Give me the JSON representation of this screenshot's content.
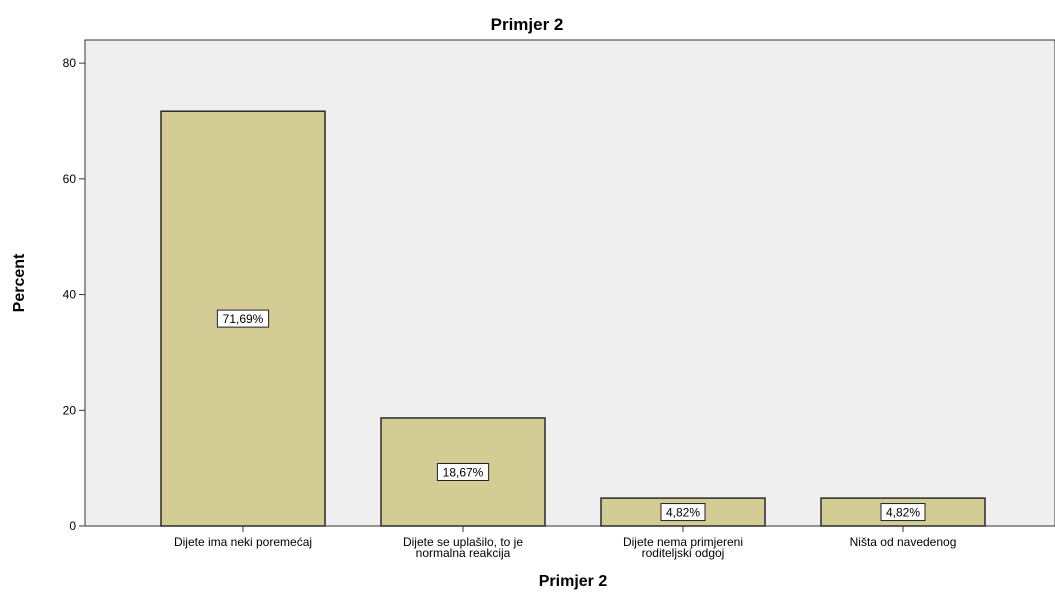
{
  "chart_data": {
    "type": "bar",
    "title": "Primjer 2",
    "xlabel": "Primjer 2",
    "ylabel": "Percent",
    "ylim": [
      0,
      84
    ],
    "yticks": [
      0,
      20,
      40,
      60,
      80
    ],
    "grid": false,
    "categories": [
      [
        "Dijete ima neki poremećaj"
      ],
      [
        "Dijete se uplašilo, to je",
        "normalna reakcija"
      ],
      [
        "Dijete nema primjereni",
        "roditeljski odgoj"
      ],
      [
        "Ništa od navedenog"
      ]
    ],
    "values": [
      71.69,
      18.67,
      4.82,
      4.82
    ],
    "data_labels": [
      "71,69%",
      "18,67%",
      "4,82%",
      "4,82%"
    ],
    "colors": {
      "bar_fill": "#d3cc94",
      "bar_stroke": "#2a2a2a",
      "plot_background": "#efefef",
      "label_box": "#ffffff"
    }
  }
}
